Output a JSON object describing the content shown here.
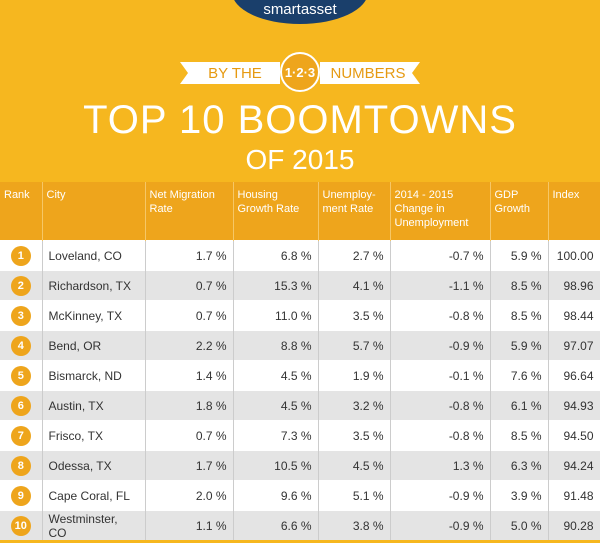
{
  "brand": "smartasset",
  "banner": {
    "left": "BY THE",
    "badge": "1·2·3",
    "right": "NUMBERS"
  },
  "title": "TOP 10 BOOMTOWNS",
  "subtitle": "OF 2015",
  "table": {
    "headers": [
      "Rank",
      "City",
      "Net Migration Rate",
      "Housing Growth Rate",
      "Unemploy-ment Rate",
      "2014 - 2015 Change in Unemployment",
      "GDP Growth",
      "Index"
    ],
    "rows": [
      [
        "1",
        "Loveland, CO",
        "1.7 %",
        "6.8 %",
        "2.7 %",
        "-0.7 %",
        "5.9 %",
        "100.00"
      ],
      [
        "2",
        "Richardson, TX",
        "0.7 %",
        "15.3 %",
        "4.1 %",
        "-1.1 %",
        "8.5 %",
        "98.96"
      ],
      [
        "3",
        "McKinney, TX",
        "0.7 %",
        "11.0 %",
        "3.5 %",
        "-0.8 %",
        "8.5 %",
        "98.44"
      ],
      [
        "4",
        "Bend, OR",
        "2.2 %",
        "8.8 %",
        "5.7 %",
        "-0.9 %",
        "5.9 %",
        "97.07"
      ],
      [
        "5",
        "Bismarck, ND",
        "1.4 %",
        "4.5 %",
        "1.9 %",
        "-0.1 %",
        "7.6 %",
        "96.64"
      ],
      [
        "6",
        "Austin, TX",
        "1.8 %",
        "4.5 %",
        "3.2 %",
        "-0.8 %",
        "6.1 %",
        "94.93"
      ],
      [
        "7",
        "Frisco, TX",
        "0.7 %",
        "7.3 %",
        "3.5 %",
        "-0.8 %",
        "8.5 %",
        "94.50"
      ],
      [
        "8",
        "Odessa, TX",
        "1.7 %",
        "10.5 %",
        "4.5 %",
        "1.3 %",
        "6.3 %",
        "94.24"
      ],
      [
        "9",
        "Cape Coral, FL",
        "2.0 %",
        "9.6 %",
        "5.1 %",
        "-0.9 %",
        "3.9 %",
        "91.48"
      ],
      [
        "10",
        "Westminster, CO",
        "1.1 %",
        "6.6 %",
        "3.8 %",
        "-0.9 %",
        "5.0 %",
        "90.28"
      ]
    ]
  }
}
